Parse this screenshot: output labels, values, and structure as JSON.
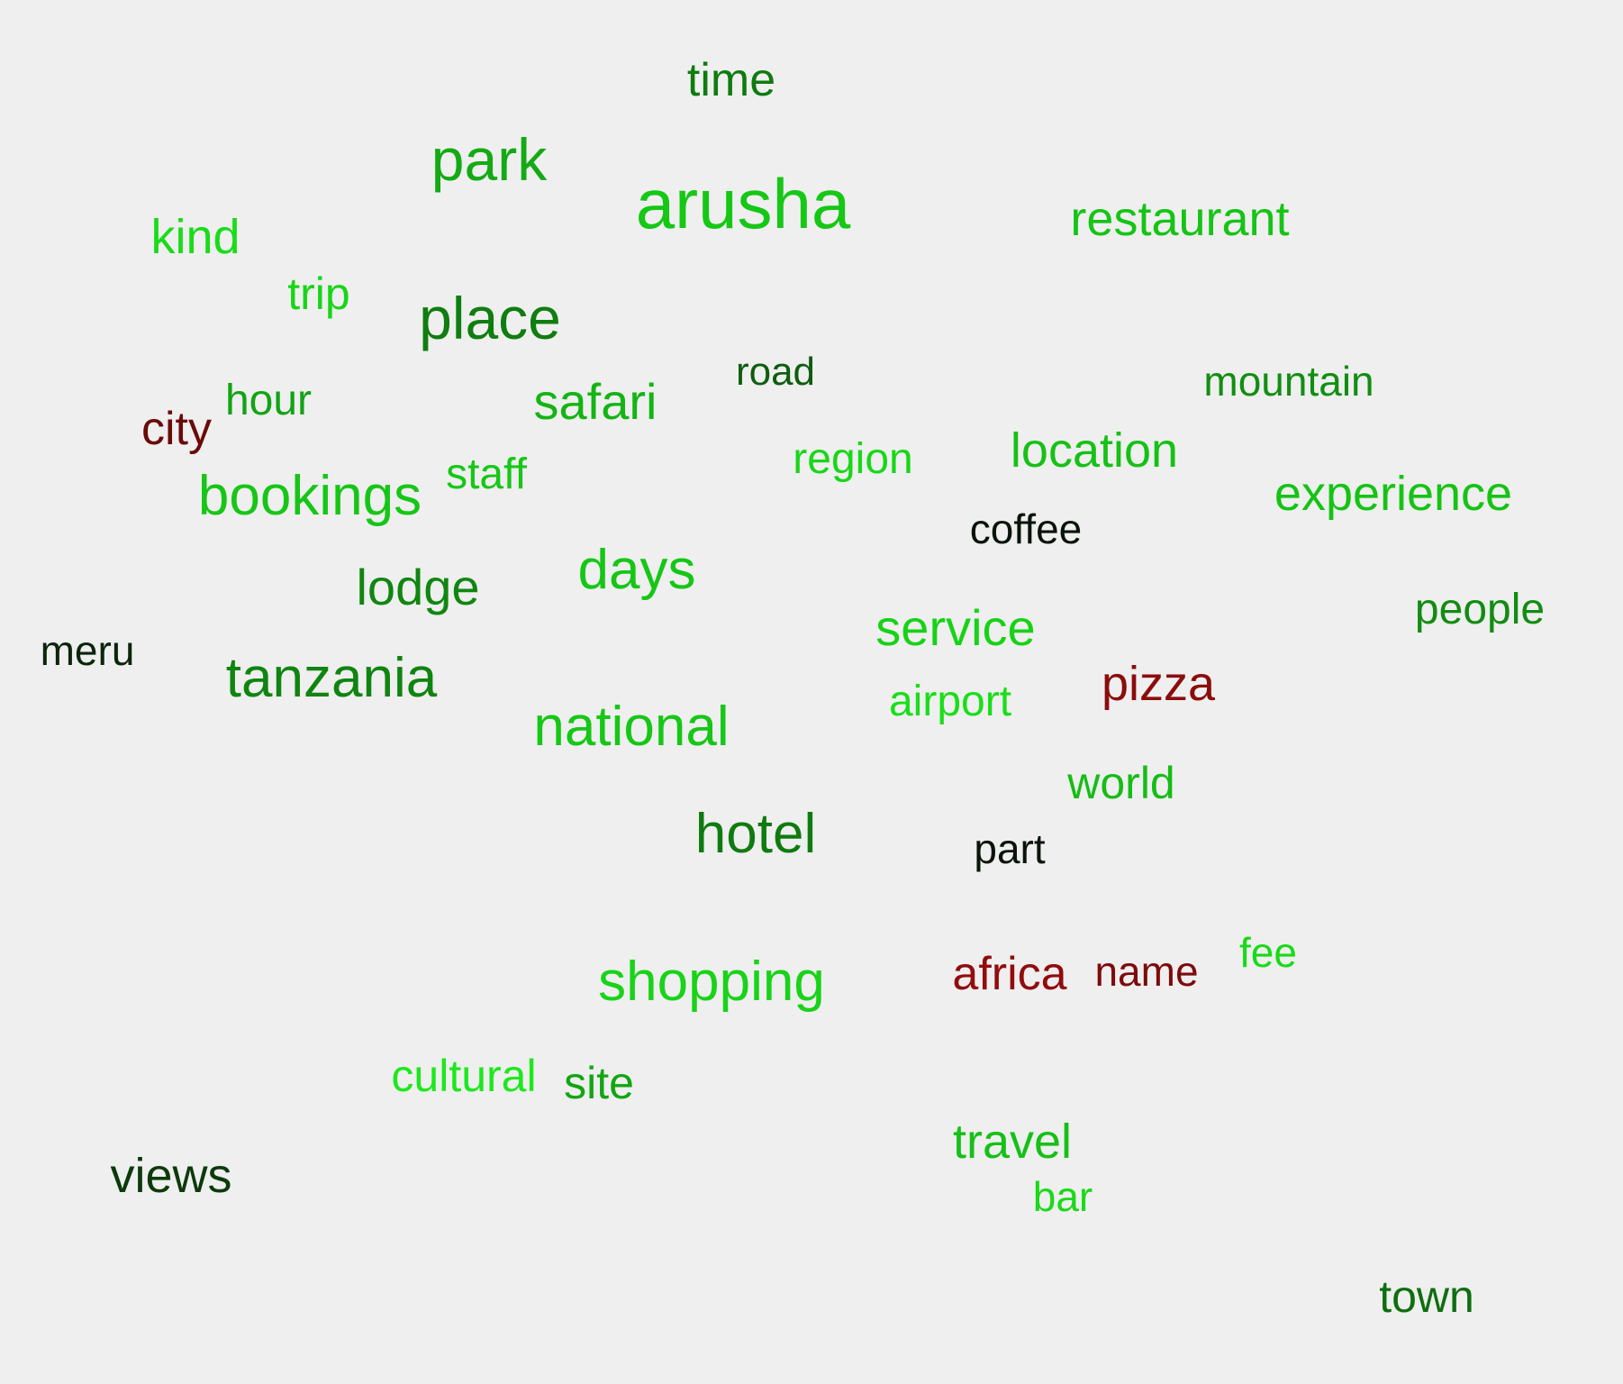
{
  "word_cloud": {
    "background": "#efefef",
    "words": {
      "arusha": {
        "text": "arusha",
        "color": "#16c716"
      },
      "park": {
        "text": "park",
        "color": "#14aa14"
      },
      "place": {
        "text": "place",
        "color": "#107d10"
      },
      "hotel": {
        "text": "hotel",
        "color": "#0f7b0f"
      },
      "days": {
        "text": "days",
        "color": "#16c616"
      },
      "time": {
        "text": "time",
        "color": "#0f7b0f"
      },
      "restaurant": {
        "text": "restaurant",
        "color": "#15c415"
      },
      "kind": {
        "text": "kind",
        "color": "#18dc18"
      },
      "trip": {
        "text": "trip",
        "color": "#18d518"
      },
      "road": {
        "text": "road",
        "color": "#0e5d0e"
      },
      "mountain": {
        "text": "mountain",
        "color": "#128e12"
      },
      "hour": {
        "text": "hour",
        "color": "#13a313"
      },
      "city": {
        "text": "city",
        "color": "#6b0a0a"
      },
      "safari": {
        "text": "safari",
        "color": "#14b414"
      },
      "region": {
        "text": "region",
        "color": "#17d717"
      },
      "location": {
        "text": "location",
        "color": "#16c116"
      },
      "staff": {
        "text": "staff",
        "color": "#17c617"
      },
      "bookings": {
        "text": "bookings",
        "color": "#16c616"
      },
      "experience": {
        "text": "experience",
        "color": "#15c315"
      },
      "coffee": {
        "text": "coffee",
        "color": "#0a140a"
      },
      "lodge": {
        "text": "lodge",
        "color": "#108610"
      },
      "service": {
        "text": "service",
        "color": "#17d217"
      },
      "people": {
        "text": "people",
        "color": "#128c12"
      },
      "meru": {
        "text": "meru",
        "color": "#0c250c"
      },
      "tanzania": {
        "text": "tanzania",
        "color": "#108410"
      },
      "pizza": {
        "text": "pizza",
        "color": "#8b0c0c"
      },
      "airport": {
        "text": "airport",
        "color": "#19de19"
      },
      "national": {
        "text": "national",
        "color": "#16c716"
      },
      "world": {
        "text": "world",
        "color": "#15bd15"
      },
      "part": {
        "text": "part",
        "color": "#0b140b"
      },
      "fee": {
        "text": "fee",
        "color": "#18da18"
      },
      "africa": {
        "text": "africa",
        "color": "#920c0c"
      },
      "name": {
        "text": "name",
        "color": "#7d0b0b"
      },
      "shopping": {
        "text": "shopping",
        "color": "#18d318"
      },
      "cultural": {
        "text": "cultural",
        "color": "#1de81d"
      },
      "site": {
        "text": "site",
        "color": "#13a513"
      },
      "views": {
        "text": "views",
        "color": "#0c3a0c"
      },
      "travel": {
        "text": "travel",
        "color": "#16c016"
      },
      "bar": {
        "text": "bar",
        "color": "#1ad91a"
      },
      "town": {
        "text": "town",
        "color": "#0f6e0f"
      }
    }
  }
}
